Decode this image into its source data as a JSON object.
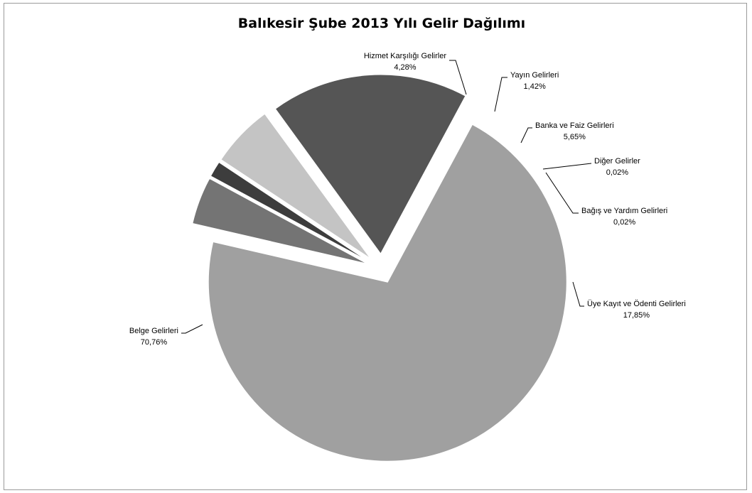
{
  "chart_data": {
    "type": "pie",
    "title": "Balıkesir Şube 2013 Yılı Gelir Dağılımı",
    "slices": [
      {
        "label": "Hizmet Karşılığı Gelirler",
        "value": 4.28,
        "value_label": "4,28%",
        "color": "#747474",
        "exploded": true
      },
      {
        "label": "Yayın Gelirleri",
        "value": 1.42,
        "value_label": "1,42%",
        "color": "#3d3d3d",
        "exploded": true
      },
      {
        "label": "Banka ve Faiz Gelirleri",
        "value": 5.65,
        "value_label": "5,65%",
        "color": "#c4c4c4",
        "exploded": true
      },
      {
        "label": "Diğer Gelirler",
        "value": 0.02,
        "value_label": "0,02%",
        "color": "#d9d9d9",
        "exploded": true
      },
      {
        "label": "Bağış ve Yardım Gelirleri",
        "value": 0.02,
        "value_label": "0,02%",
        "color": "#ececec",
        "exploded": true
      },
      {
        "label": "Üye Kayıt ve Ödenti Gelirleri",
        "value": 17.85,
        "value_label": "17,85%",
        "color": "#555555",
        "exploded": true
      },
      {
        "label": "Belge Gelirleri",
        "value": 70.76,
        "value_label": "70,76%",
        "color": "#a0a0a0",
        "exploded": true
      }
    ],
    "legend": "none"
  }
}
